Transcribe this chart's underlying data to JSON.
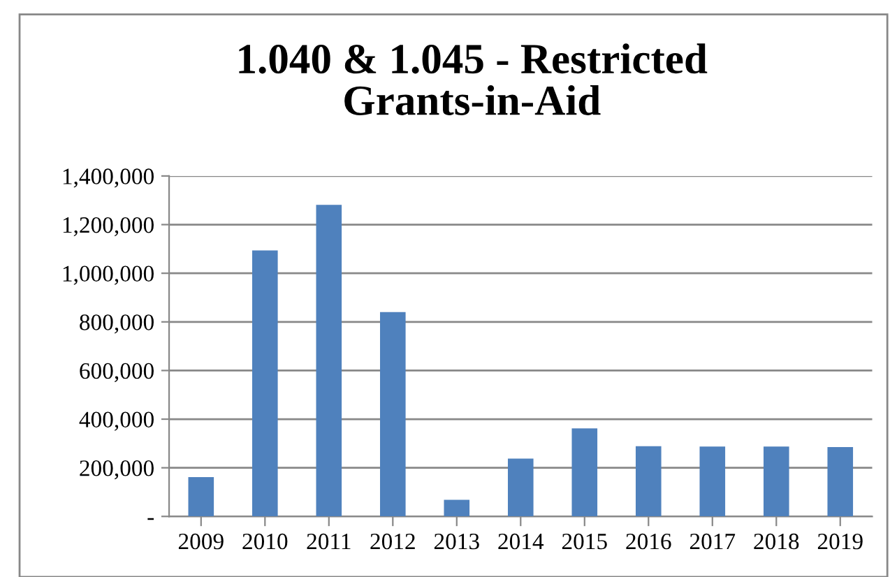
{
  "chart_data": {
    "type": "bar",
    "title": "1.040 & 1.045 - Restricted\nGrants-in-Aid",
    "categories": [
      "2009",
      "2010",
      "2011",
      "2012",
      "2013",
      "2014",
      "2015",
      "2016",
      "2017",
      "2018",
      "2019"
    ],
    "values": [
      162000,
      1094000,
      1281000,
      840000,
      68000,
      238000,
      362000,
      289000,
      287000,
      287000,
      285000
    ],
    "color": "#4f81bd",
    "ylim": [
      0,
      1400000
    ],
    "yticks": [
      {
        "value": 0,
        "label": "-"
      },
      {
        "value": 200000,
        "label": "200,000"
      },
      {
        "value": 400000,
        "label": "400,000"
      },
      {
        "value": 600000,
        "label": "600,000"
      },
      {
        "value": 800000,
        "label": "800,000"
      },
      {
        "value": 1000000,
        "label": "1,000,000"
      },
      {
        "value": 1200000,
        "label": "1,200,000"
      },
      {
        "value": 1400000,
        "label": "1,400,000"
      }
    ],
    "grid": "y"
  }
}
